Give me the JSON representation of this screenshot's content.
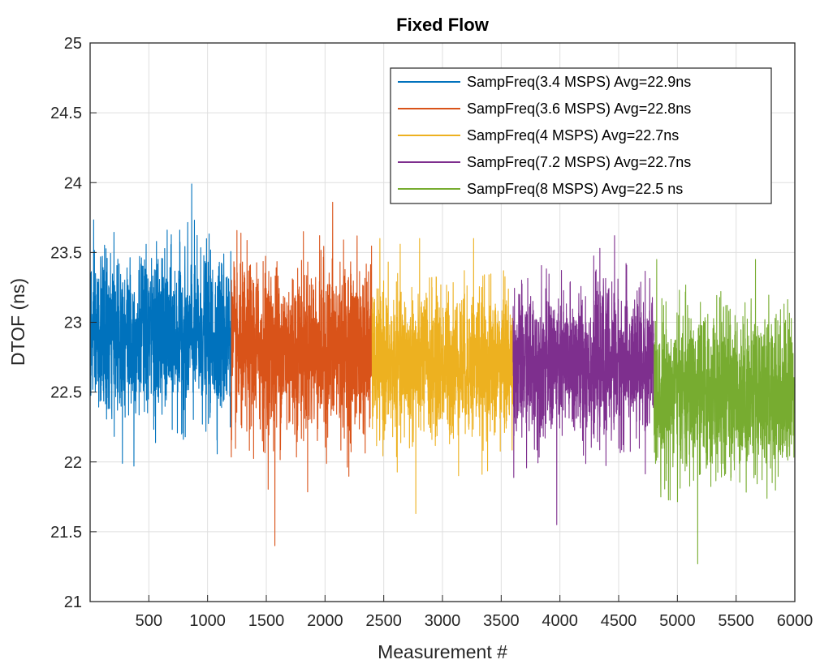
{
  "chart_data": {
    "type": "line",
    "title": "Fixed Flow",
    "xlabel": "Measurement #",
    "ylabel": "DTOF (ns)",
    "xlim": [
      0,
      6000
    ],
    "ylim": [
      21,
      25
    ],
    "xticks": [
      500,
      1000,
      1500,
      2000,
      2500,
      3000,
      3500,
      4000,
      4500,
      5000,
      5500,
      6000
    ],
    "yticks": [
      21,
      21.5,
      22,
      22.5,
      23,
      23.5,
      24,
      24.5,
      25
    ],
    "grid": true,
    "legend_position": "top-right",
    "series": [
      {
        "name": "SampFreq(3.4 MSPS) Avg=22.9ns",
        "color": "#0072BD",
        "x_range": [
          1,
          1200
        ],
        "avg": 22.9,
        "spread": 0.28,
        "min": 21.97,
        "max": 23.99
      },
      {
        "name": "SampFreq(3.6 MSPS) Avg=22.8ns",
        "color": "#D95319",
        "x_range": [
          1201,
          2400
        ],
        "avg": 22.8,
        "spread": 0.3,
        "min": 21.4,
        "max": 23.86
      },
      {
        "name": "SampFreq(4 MSPS) Avg=22.7ns",
        "color": "#EDB120",
        "x_range": [
          2401,
          3600
        ],
        "avg": 22.7,
        "spread": 0.26,
        "min": 21.63,
        "max": 23.6
      },
      {
        "name": "SampFreq(7.2 MSPS) Avg=22.7ns",
        "color": "#7E2F8E",
        "x_range": [
          3601,
          4800
        ],
        "avg": 22.7,
        "spread": 0.26,
        "min": 21.55,
        "max": 23.62
      },
      {
        "name": "SampFreq(8 MSPS) Avg=22.5 ns",
        "color": "#77AC30",
        "x_range": [
          4801,
          6000
        ],
        "avg": 22.5,
        "spread": 0.28,
        "min": 21.27,
        "max": 23.45
      }
    ]
  }
}
